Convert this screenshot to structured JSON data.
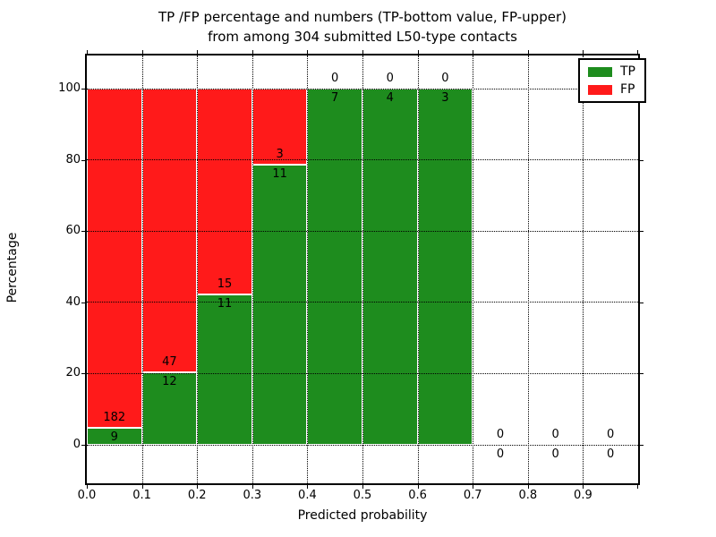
{
  "chart_data": {
    "type": "bar",
    "stacked": true,
    "percent_stacked": true,
    "title": "TP /FP percentage and numbers (TP-bottom value, FP-upper)",
    "subtitle": "from among 304 submitted L50-type contacts",
    "xlabel": "Predicted probability",
    "ylabel": "Percentage",
    "total_contacts": 304,
    "categories": [
      "0.0-0.1",
      "0.1-0.2",
      "0.2-0.3",
      "0.3-0.4",
      "0.4-0.5",
      "0.5-0.6",
      "0.6-0.7",
      "0.7-0.8",
      "0.8-0.9",
      "0.9-1.0"
    ],
    "series": [
      {
        "name": "TP",
        "color": "#1e8c1e",
        "values": [
          9,
          12,
          11,
          11,
          7,
          4,
          3,
          0,
          0,
          0
        ]
      },
      {
        "name": "FP",
        "color": "#ff1a1a",
        "values": [
          182,
          47,
          15,
          3,
          0,
          0,
          0,
          0,
          0,
          0
        ]
      }
    ],
    "x_tick_labels": [
      "0.0",
      "0.1",
      "0.2",
      "0.3",
      "0.4",
      "0.5",
      "0.6",
      "0.7",
      "0.8",
      "0.9"
    ],
    "y_tick_values": [
      0,
      20,
      40,
      60,
      80,
      100
    ],
    "xlim": [
      0.0,
      1.0
    ],
    "ylim": [
      -10.8,
      109.3
    ],
    "grid": "dotted",
    "legend": {
      "position": "upper right",
      "entries": [
        {
          "label": "TP",
          "color": "#1e8c1e"
        },
        {
          "label": "FP",
          "color": "#ff1a1a"
        }
      ]
    }
  },
  "colors": {
    "tp": "#1e8c1e",
    "fp": "#ff1a1a",
    "background": "#ffffff",
    "frame": "#000000",
    "grid": "#000000",
    "bar_edge": "#ffffff"
  }
}
